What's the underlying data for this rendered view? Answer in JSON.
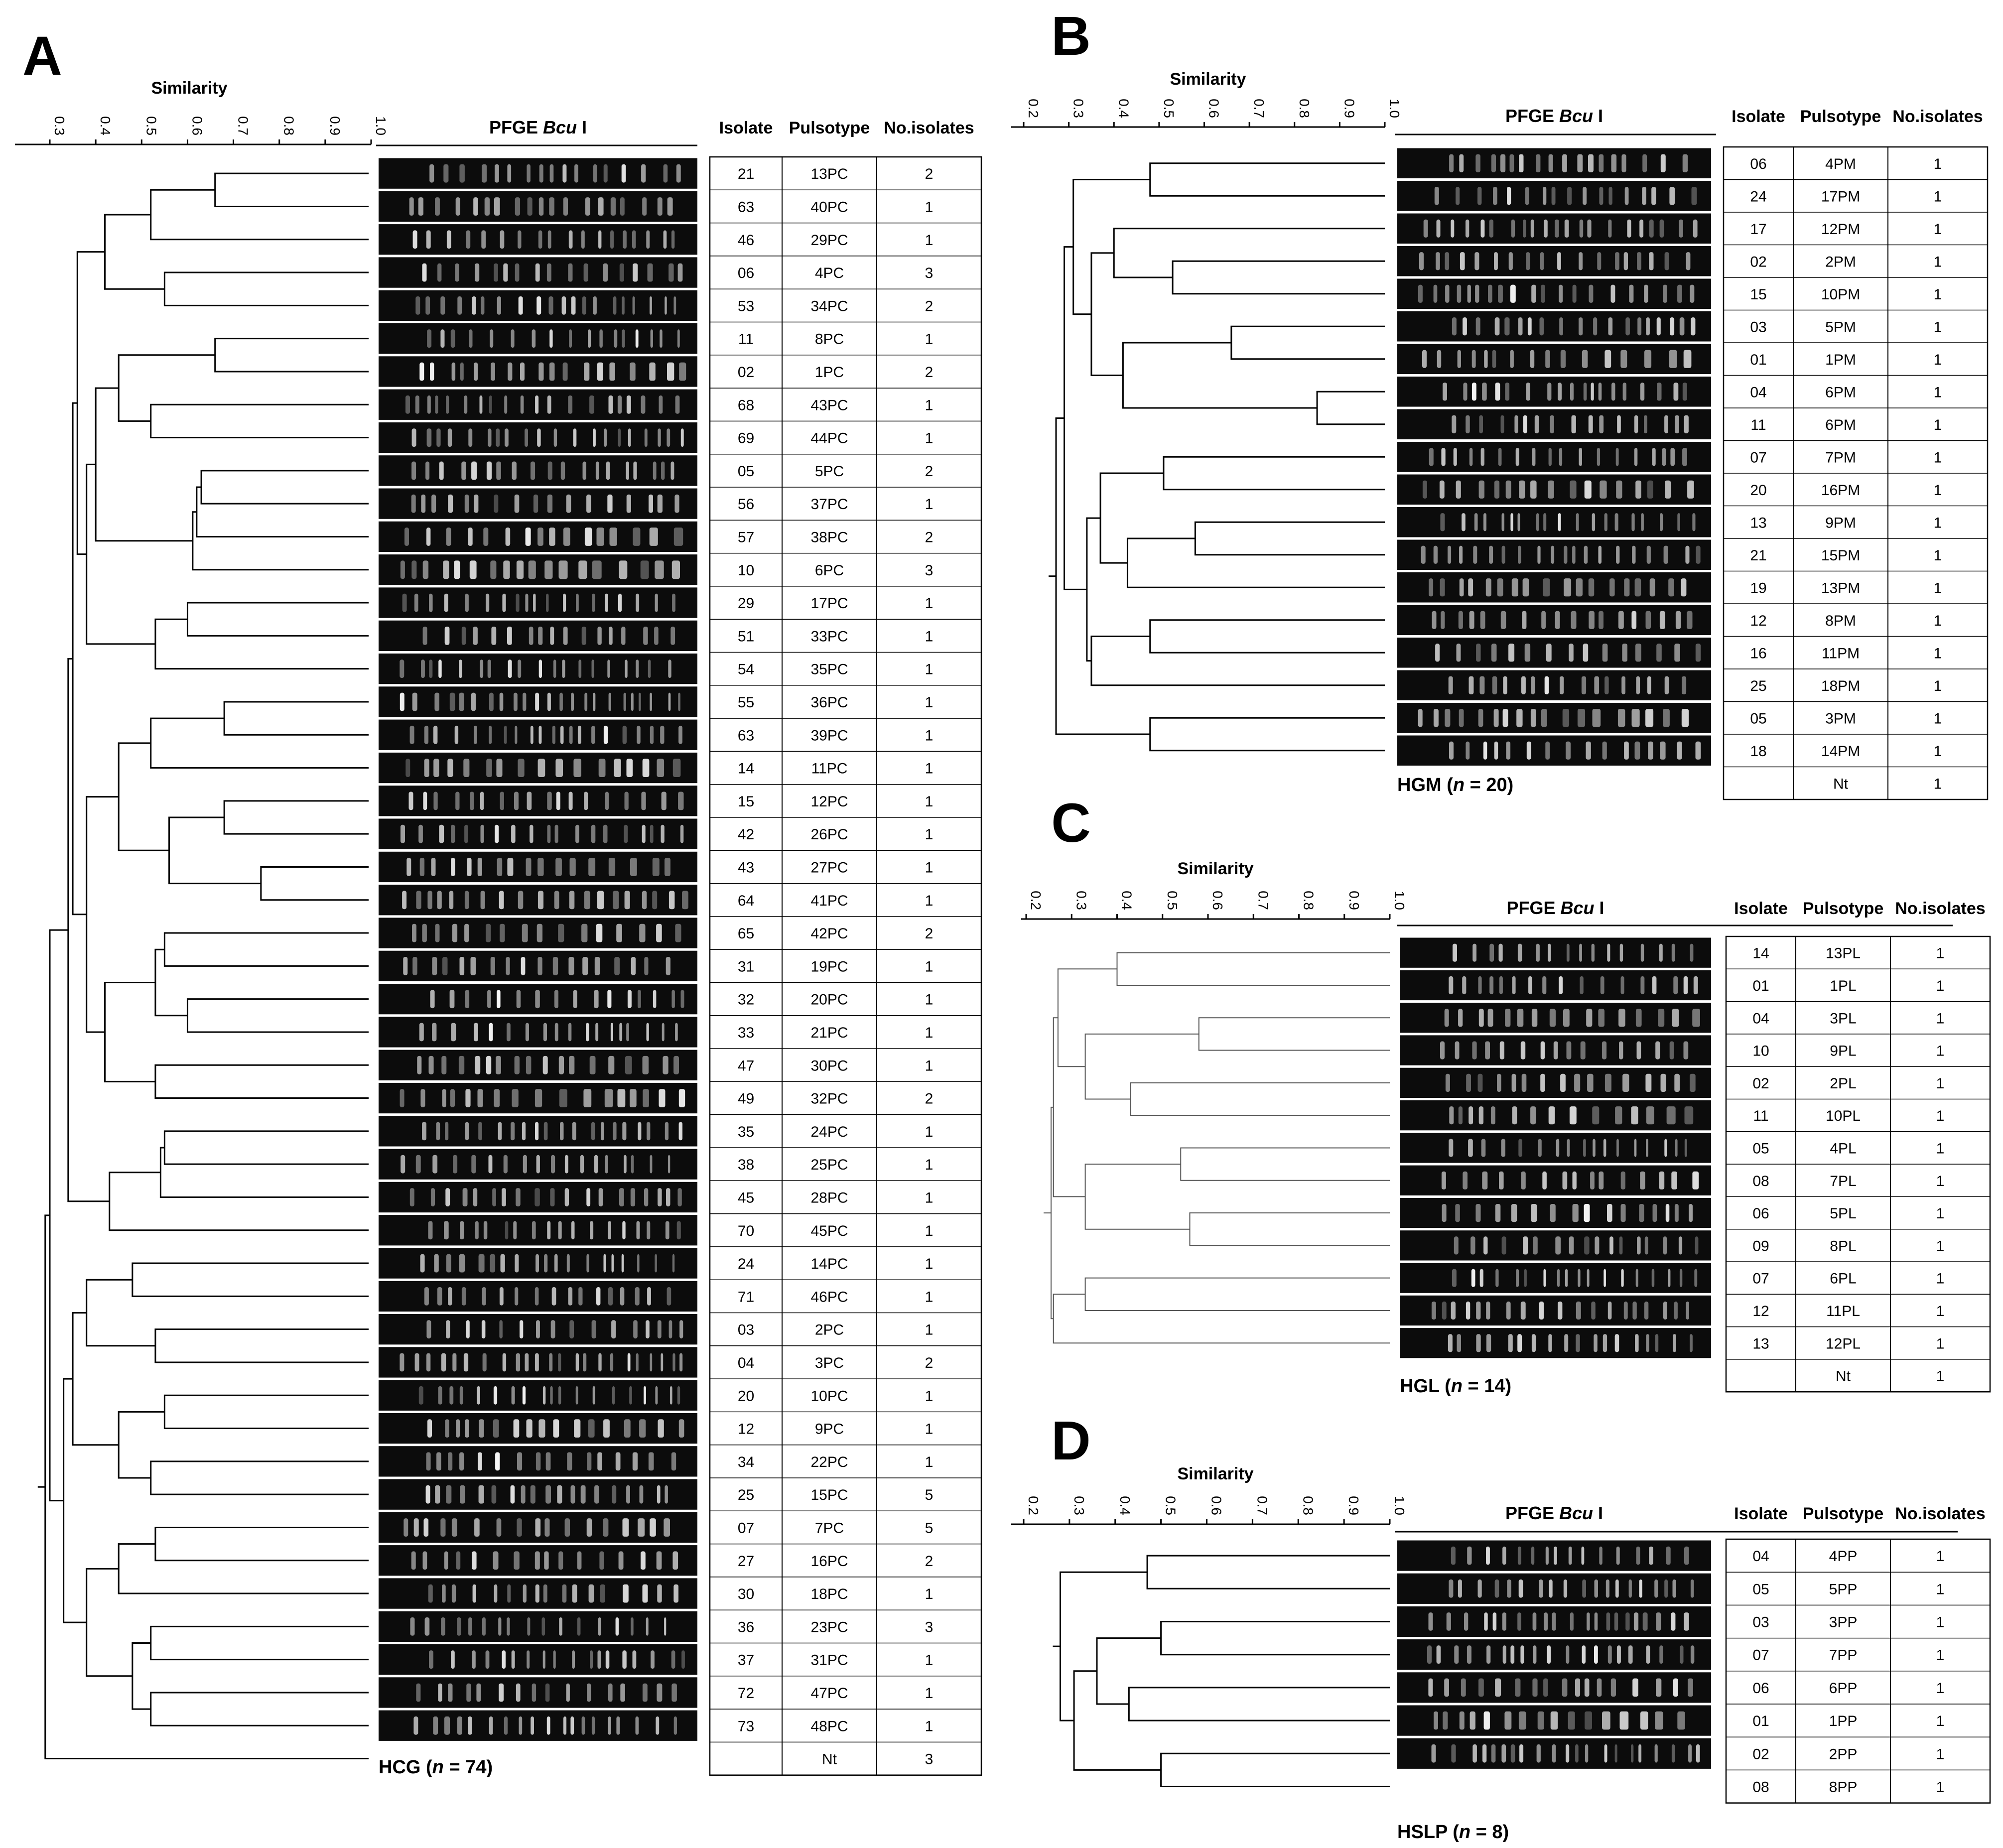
{
  "figure": {
    "panels": [
      {
        "letter": "A",
        "similarity_label": "Similarity",
        "ticks": [
          "0.3",
          "0.4",
          "0.5",
          "0.6",
          "0.7",
          "0.8",
          "0.9",
          "1.0"
        ],
        "gel_title": "PFGE",
        "enzyme": "Bcu",
        "enzyme_suffix": "I",
        "columns": [
          "Isolate",
          "Pulsotype",
          "No.isolates"
        ],
        "caption_group": "HCG",
        "caption_n": "n",
        "caption_value": " = 74)",
        "rows": [
          [
            "21",
            "13PC",
            "2"
          ],
          [
            "63",
            "40PC",
            "1"
          ],
          [
            "46",
            "29PC",
            "1"
          ],
          [
            "06",
            "4PC",
            "3"
          ],
          [
            "53",
            "34PC",
            "2"
          ],
          [
            "11",
            "8PC",
            "1"
          ],
          [
            "02",
            "1PC",
            "2"
          ],
          [
            "68",
            "43PC",
            "1"
          ],
          [
            "69",
            "44PC",
            "1"
          ],
          [
            "05",
            "5PC",
            "2"
          ],
          [
            "56",
            "37PC",
            "1"
          ],
          [
            "57",
            "38PC",
            "2"
          ],
          [
            "10",
            "6PC",
            "3"
          ],
          [
            "29",
            "17PC",
            "1"
          ],
          [
            "51",
            "33PC",
            "1"
          ],
          [
            "54",
            "35PC",
            "1"
          ],
          [
            "55",
            "36PC",
            "1"
          ],
          [
            "63",
            "39PC",
            "1"
          ],
          [
            "14",
            "11PC",
            "1"
          ],
          [
            "15",
            "12PC",
            "1"
          ],
          [
            "42",
            "26PC",
            "1"
          ],
          [
            "43",
            "27PC",
            "1"
          ],
          [
            "64",
            "41PC",
            "1"
          ],
          [
            "65",
            "42PC",
            "2"
          ],
          [
            "31",
            "19PC",
            "1"
          ],
          [
            "32",
            "20PC",
            "1"
          ],
          [
            "33",
            "21PC",
            "1"
          ],
          [
            "47",
            "30PC",
            "1"
          ],
          [
            "49",
            "32PC",
            "2"
          ],
          [
            "35",
            "24PC",
            "1"
          ],
          [
            "38",
            "25PC",
            "1"
          ],
          [
            "45",
            "28PC",
            "1"
          ],
          [
            "70",
            "45PC",
            "1"
          ],
          [
            "24",
            "14PC",
            "1"
          ],
          [
            "71",
            "46PC",
            "1"
          ],
          [
            "03",
            "2PC",
            "1"
          ],
          [
            "04",
            "3PC",
            "2"
          ],
          [
            "20",
            "10PC",
            "1"
          ],
          [
            "12",
            "9PC",
            "1"
          ],
          [
            "34",
            "22PC",
            "1"
          ],
          [
            "25",
            "15PC",
            "5"
          ],
          [
            "07",
            "7PC",
            "5"
          ],
          [
            "27",
            "16PC",
            "2"
          ],
          [
            "30",
            "18PC",
            "1"
          ],
          [
            "36",
            "23PC",
            "3"
          ],
          [
            "37",
            "31PC",
            "1"
          ],
          [
            "72",
            "47PC",
            "1"
          ],
          [
            "73",
            "48PC",
            "1"
          ],
          [
            "",
            "Nt",
            "3"
          ]
        ]
      },
      {
        "letter": "B",
        "similarity_label": "Similarity",
        "ticks": [
          "0.2",
          "0.3",
          "0.4",
          "0.5",
          "0.6",
          "0.7",
          "0.8",
          "0.9",
          "1.0"
        ],
        "gel_title": "PFGE",
        "enzyme": "Bcu",
        "enzyme_suffix": "I",
        "columns": [
          "Isolate",
          "Pulsotype",
          "No.isolates"
        ],
        "caption_group": "HGM",
        "caption_n": "n",
        "caption_value": " = 20)",
        "rows": [
          [
            "06",
            "4PM",
            "1"
          ],
          [
            "24",
            "17PM",
            "1"
          ],
          [
            "17",
            "12PM",
            "1"
          ],
          [
            "02",
            "2PM",
            "1"
          ],
          [
            "15",
            "10PM",
            "1"
          ],
          [
            "03",
            "5PM",
            "1"
          ],
          [
            "01",
            "1PM",
            "1"
          ],
          [
            "04",
            "6PM",
            "1"
          ],
          [
            "11",
            "6PM",
            "1"
          ],
          [
            "07",
            "7PM",
            "1"
          ],
          [
            "20",
            "16PM",
            "1"
          ],
          [
            "13",
            "9PM",
            "1"
          ],
          [
            "21",
            "15PM",
            "1"
          ],
          [
            "19",
            "13PM",
            "1"
          ],
          [
            "12",
            "8PM",
            "1"
          ],
          [
            "16",
            "11PM",
            "1"
          ],
          [
            "25",
            "18PM",
            "1"
          ],
          [
            "05",
            "3PM",
            "1"
          ],
          [
            "18",
            "14PM",
            "1"
          ],
          [
            "",
            "Nt",
            "1"
          ]
        ]
      },
      {
        "letter": "C",
        "similarity_label": "Similarity",
        "ticks": [
          "0.2",
          "0.3",
          "0.4",
          "0.5",
          "0.6",
          "0.7",
          "0.8",
          "0.9",
          "1.0"
        ],
        "gel_title": "PFGE",
        "enzyme": "Bcu",
        "enzyme_suffix": "I",
        "columns": [
          "Isolate",
          "Pulsotype",
          "No.isolates"
        ],
        "caption_group": "HGL",
        "caption_n": "n",
        "caption_value": " = 14)",
        "rows": [
          [
            "14",
            "13PL",
            "1"
          ],
          [
            "01",
            "1PL",
            "1"
          ],
          [
            "04",
            "3PL",
            "1"
          ],
          [
            "10",
            "9PL",
            "1"
          ],
          [
            "02",
            "2PL",
            "1"
          ],
          [
            "11",
            "10PL",
            "1"
          ],
          [
            "05",
            "4PL",
            "1"
          ],
          [
            "08",
            "7PL",
            "1"
          ],
          [
            "06",
            "5PL",
            "1"
          ],
          [
            "09",
            "8PL",
            "1"
          ],
          [
            "07",
            "6PL",
            "1"
          ],
          [
            "12",
            "11PL",
            "1"
          ],
          [
            "13",
            "12PL",
            "1"
          ],
          [
            "",
            "Nt",
            "1"
          ]
        ]
      },
      {
        "letter": "D",
        "similarity_label": "Similarity",
        "ticks": [
          "0.2",
          "0.3",
          "0.4",
          "0.5",
          "0.6",
          "0.7",
          "0.8",
          "0.9",
          "1.0"
        ],
        "gel_title": "PFGE",
        "enzyme": "Bcu",
        "enzyme_suffix": "I",
        "columns": [
          "Isolate",
          "Pulsotype",
          "No.isolates"
        ],
        "caption_group": "HSLP",
        "caption_n": "n",
        "caption_value": " = 8)",
        "rows": [
          [
            "04",
            "4PP",
            "1"
          ],
          [
            "05",
            "5PP",
            "1"
          ],
          [
            "03",
            "3PP",
            "1"
          ],
          [
            "07",
            "7PP",
            "1"
          ],
          [
            "06",
            "6PP",
            "1"
          ],
          [
            "01",
            "1PP",
            "1"
          ],
          [
            "02",
            "2PP",
            "1"
          ],
          [
            "08",
            "8PP",
            "1"
          ]
        ]
      }
    ]
  }
}
